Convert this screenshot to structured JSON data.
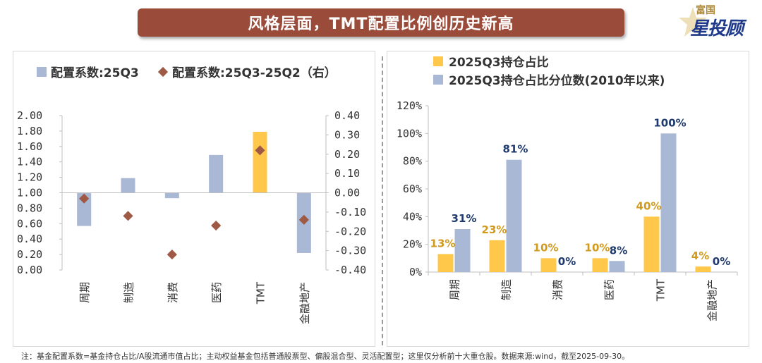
{
  "header": {
    "title": "风格层面，TMT配置比例创历史新高",
    "logo_top": "富国",
    "logo_main": "星投顾"
  },
  "footnote": "注：基金配置系数=基金持仓占比/A股流通市值占比；主动权益基金包括普通股票型、偏股混合型、灵活配置型；这里仅分析前十大重仓股。数据来源:wind，截至2025-09-30。",
  "colors": {
    "blue_bar": "#a9b8d4",
    "yellow_bar": "#ffc84a",
    "diamond": "#9e5a45",
    "blue_label": "#1f3a6e",
    "yellow_label": "#d19a1c",
    "title_bg": "#9a4b3a"
  },
  "chart_data": [
    {
      "type": "bar",
      "categories": [
        "周期",
        "制造",
        "消费",
        "医药",
        "TMT",
        "金融地产"
      ],
      "series": [
        {
          "name": "配置系数:25Q3",
          "type": "bar",
          "axis": "left",
          "values": [
            0.57,
            1.19,
            0.93,
            1.49,
            1.79,
            0.22
          ],
          "highlight_index": 4
        },
        {
          "name": "配置系数:25Q3-25Q2（右）",
          "type": "scatter",
          "marker": "diamond",
          "axis": "right",
          "values": [
            -0.03,
            -0.12,
            -0.32,
            -0.17,
            0.22,
            -0.14
          ]
        }
      ],
      "baseline": 1.0,
      "ylim": [
        0,
        2
      ],
      "yticks": [
        "2.00",
        "1.80",
        "1.60",
        "1.40",
        "1.20",
        "1.00",
        "0.80",
        "0.60",
        "0.40",
        "0.20",
        "0.00"
      ],
      "y2lim": [
        -0.4,
        0.4
      ],
      "y2ticks": [
        "0.40",
        "0.30",
        "0.20",
        "0.10",
        "0.00",
        "-0.10",
        "-0.20",
        "-0.30",
        "-0.40"
      ],
      "legend_position": "top-left"
    },
    {
      "type": "bar",
      "categories": [
        "周期",
        "制造",
        "消费",
        "医药",
        "TMT",
        "金融地产"
      ],
      "series": [
        {
          "name": "2025Q3持仓占比",
          "values": [
            13,
            23,
            10,
            10,
            40,
            4
          ],
          "labels": [
            "13%",
            "23%",
            "10%",
            "10%",
            "40%",
            "4%"
          ]
        },
        {
          "name": "2025Q3持仓占比分位数(2010年以来)",
          "values": [
            31,
            81,
            0,
            8,
            100,
            0
          ],
          "labels": [
            "31%",
            "81%",
            "0%",
            "8%",
            "100%",
            "0%"
          ]
        }
      ],
      "ylim": [
        0,
        120
      ],
      "yticks": [
        "120%",
        "100%",
        "80%",
        "60%",
        "40%",
        "20%",
        "0%"
      ],
      "legend_position": "top-left"
    }
  ]
}
